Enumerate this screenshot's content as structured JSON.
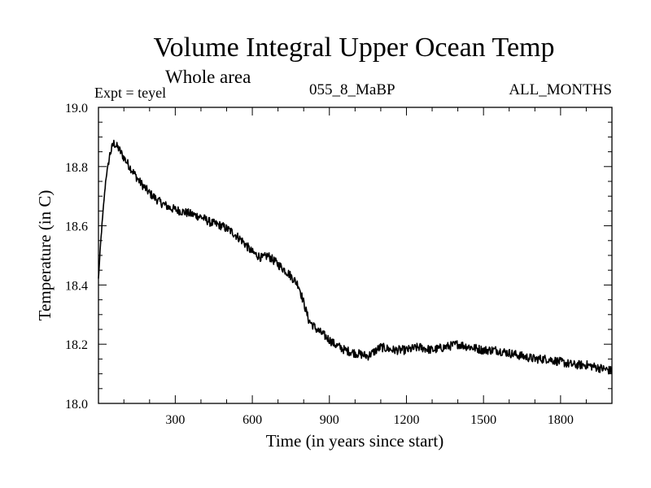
{
  "header": {
    "title": "Volume Integral Upper Ocean Temp",
    "subtitle": "Whole area",
    "expt": "Expt = teyel",
    "run_id": "055_8_MaBP",
    "months": "ALL_MONTHS"
  },
  "chart_data": {
    "type": "line",
    "title": "Volume Integral Upper Ocean Temp",
    "subtitle": "Whole area",
    "xlabel": "Time (in years since start)",
    "ylabel": "Temperature (in C)",
    "xlim": [
      1,
      2000
    ],
    "ylim": [
      18.0,
      19.0
    ],
    "x_ticks": [
      300,
      600,
      900,
      1200,
      1500,
      1800
    ],
    "y_ticks": [
      18.0,
      18.2,
      18.4,
      18.6,
      18.8,
      19.0
    ],
    "y_tick_labels": [
      "18.0",
      "18.2",
      "18.4",
      "18.6",
      "18.8",
      "19.0"
    ],
    "grid": false,
    "series": [
      {
        "name": "teyel",
        "color": "#000000",
        "x": [
          1,
          10,
          20,
          30,
          45,
          60,
          80,
          100,
          130,
          160,
          200,
          240,
          280,
          320,
          360,
          400,
          440,
          480,
          520,
          560,
          600,
          640,
          660,
          700,
          740,
          780,
          800,
          820,
          850,
          880,
          920,
          960,
          1000,
          1050,
          1100,
          1150,
          1200,
          1250,
          1300,
          1350,
          1400,
          1450,
          1500,
          1550,
          1600,
          1650,
          1700,
          1750,
          1800,
          1850,
          1900,
          1950,
          2000
        ],
        "y": [
          18.42,
          18.55,
          18.66,
          18.76,
          18.84,
          18.88,
          18.86,
          18.83,
          18.79,
          18.75,
          18.71,
          18.68,
          18.66,
          18.65,
          18.64,
          18.63,
          18.61,
          18.6,
          18.58,
          18.55,
          18.51,
          18.49,
          18.5,
          18.47,
          18.44,
          18.4,
          18.34,
          18.28,
          18.25,
          18.23,
          18.2,
          18.18,
          18.17,
          18.16,
          18.19,
          18.18,
          18.18,
          18.19,
          18.18,
          18.19,
          18.2,
          18.19,
          18.18,
          18.18,
          18.17,
          18.16,
          18.15,
          18.15,
          18.14,
          18.13,
          18.13,
          18.12,
          18.11
        ]
      }
    ]
  }
}
